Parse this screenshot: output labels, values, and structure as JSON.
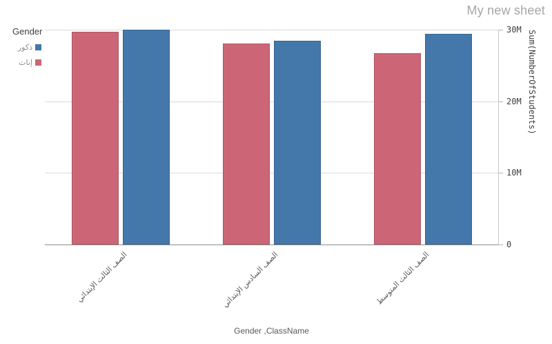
{
  "window": {
    "title": "My new sheet"
  },
  "colors": {
    "male": "#4477aa",
    "female": "#cc6677",
    "gridline": "#d9d9d9",
    "baseline": "#8c8c8c",
    "title_gray": "#a6a6a6"
  },
  "legend": {
    "title": "Gender",
    "items": [
      {
        "key": "male",
        "label": "ذكور",
        "color": "#4477aa"
      },
      {
        "key": "female",
        "label": "إناث",
        "color": "#cc6677"
      }
    ]
  },
  "chart_data": {
    "type": "bar",
    "title": "",
    "xlabel": "Gender ,ClassName",
    "ylabel": "Sum(NumberOfStudents)",
    "categories": [
      "الصف الثالث الإبتدائي",
      "الصف السادس الإبتدائي",
      "الصف الثالث المتوسط"
    ],
    "series": [
      {
        "key": "male",
        "name": "ذكور",
        "color": "#4477aa",
        "values": [
          30000000,
          28500000,
          29400000
        ]
      },
      {
        "key": "female",
        "name": "إناث",
        "color": "#cc6677",
        "values": [
          29700000,
          28100000,
          26700000
        ]
      }
    ],
    "ylim": [
      0,
      30000000
    ],
    "yticks": [
      {
        "value": 0,
        "label": "0"
      },
      {
        "value": 10000000,
        "label": "10M"
      },
      {
        "value": 20000000,
        "label": "20M"
      },
      {
        "value": 30000000,
        "label": "30M"
      }
    ],
    "grid": true,
    "legend_position": "top-left",
    "rtl_bar_order": true,
    "x_tick_rotation_deg": -45
  }
}
